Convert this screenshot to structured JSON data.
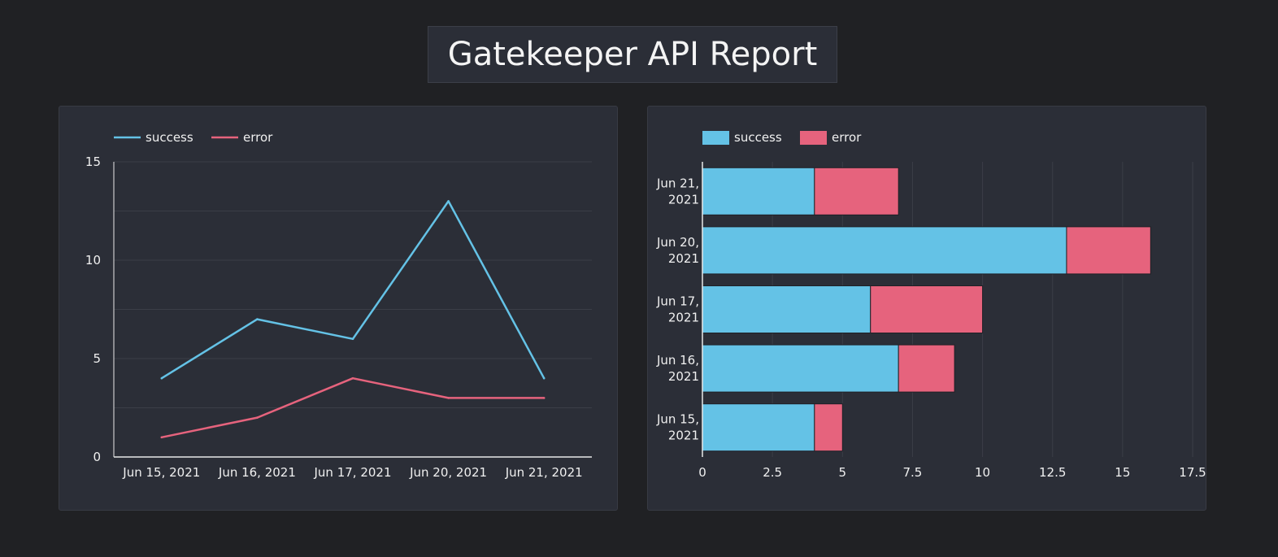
{
  "title": "Gatekeeper API Report",
  "colors": {
    "success": "#64c2e6",
    "error": "#e6637d",
    "grid": "#3b3e47",
    "axis": "#e8e8e8"
  },
  "chart_data": [
    {
      "type": "line",
      "categories": [
        "Jun 15, 2021",
        "Jun 16, 2021",
        "Jun 17, 2021",
        "Jun 20, 2021",
        "Jun 21, 2021"
      ],
      "series": [
        {
          "name": "success",
          "values": [
            4,
            7,
            6,
            13,
            4
          ]
        },
        {
          "name": "error",
          "values": [
            1,
            2,
            4,
            3,
            3
          ]
        }
      ],
      "ylim": [
        0,
        15
      ],
      "yticks": [
        0,
        5,
        10,
        15
      ],
      "grid": true,
      "legend": "top-left"
    },
    {
      "type": "bar",
      "orientation": "horizontal",
      "stacked": true,
      "categories": [
        [
          "Jun 21,",
          "2021"
        ],
        [
          "Jun 20,",
          "2021"
        ],
        [
          "Jun 17,",
          "2021"
        ],
        [
          "Jun 16,",
          "2021"
        ],
        [
          "Jun 15,",
          "2021"
        ]
      ],
      "series": [
        {
          "name": "success",
          "values": [
            4,
            13,
            6,
            7,
            4
          ]
        },
        {
          "name": "error",
          "values": [
            3,
            3,
            4,
            2,
            1
          ]
        }
      ],
      "xlim": [
        0,
        17.5
      ],
      "xticks": [
        "0",
        "2.5",
        "5",
        "7.5",
        "10",
        "12.5",
        "15",
        "17.5"
      ],
      "grid": true,
      "legend": "top-left"
    }
  ]
}
